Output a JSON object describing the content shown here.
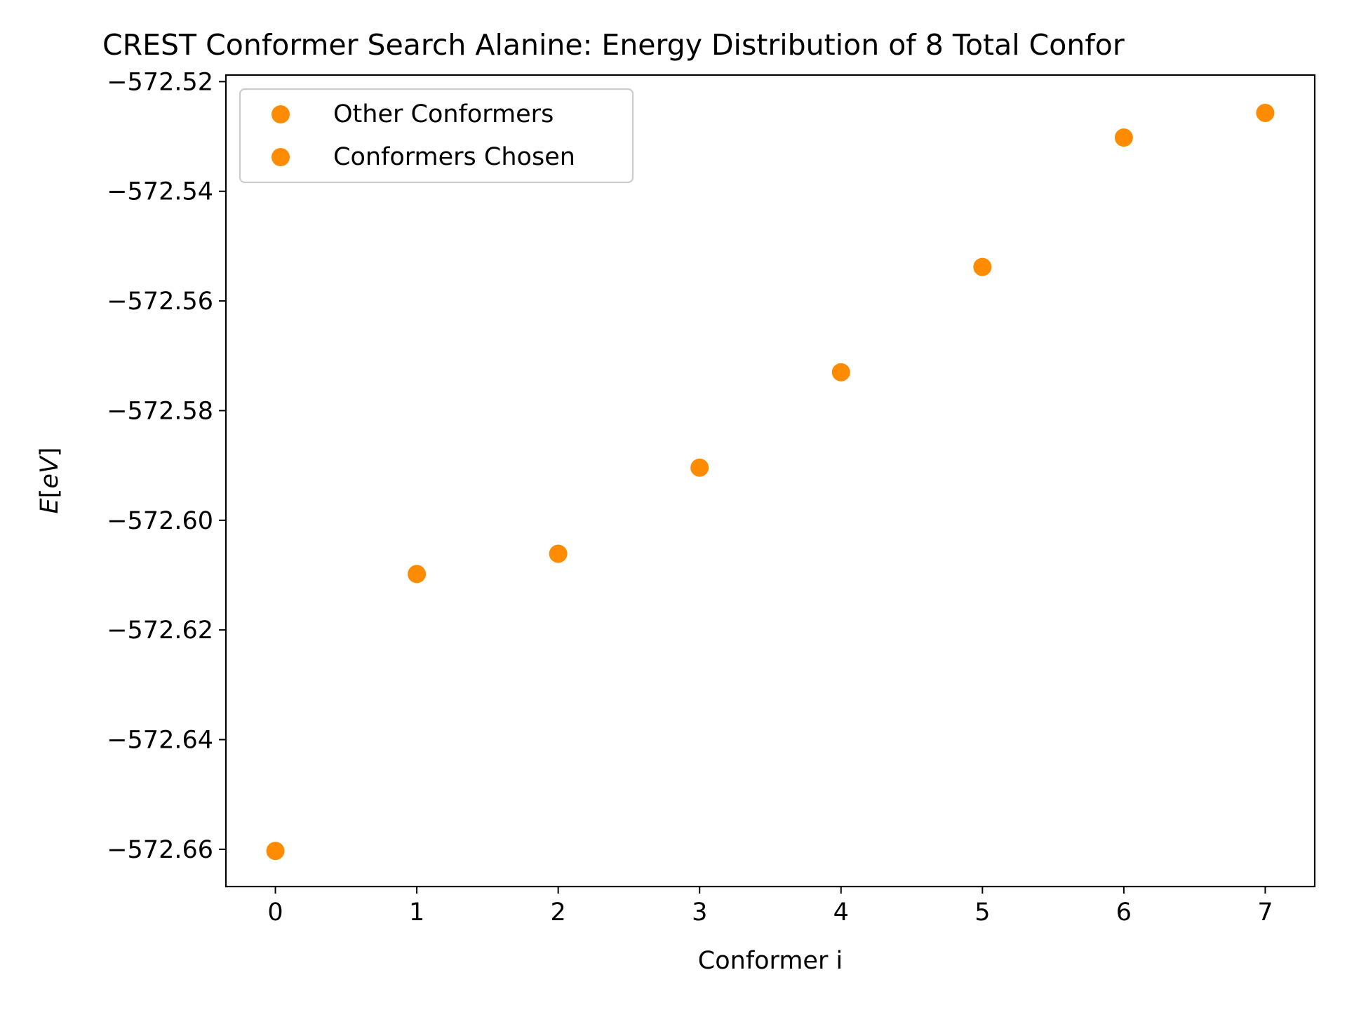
{
  "chart_data": {
    "type": "scatter",
    "title": "CREST Conformer Search Alanine: Energy Distribution of 8 Total Confor",
    "xlabel": "Conformer i",
    "ylabel_main": "E",
    "ylabel_bracket_open": "[",
    "ylabel_italic": "eV",
    "ylabel_bracket_close": "]",
    "xlim": [
      -0.35,
      7.35
    ],
    "ylim": [
      -572.6668,
      -572.5188
    ],
    "xticks": [
      0,
      1,
      2,
      3,
      4,
      5,
      6,
      7
    ],
    "x_tick_labels": [
      "0",
      "1",
      "2",
      "3",
      "4",
      "5",
      "6",
      "7"
    ],
    "yticks": [
      -572.66,
      -572.64,
      -572.62,
      -572.6,
      -572.58,
      -572.56,
      -572.54,
      -572.52
    ],
    "y_tick_labels": [
      "−572.66",
      "−572.64",
      "−572.62",
      "−572.60",
      "−572.58",
      "−572.56",
      "−572.54",
      "−572.52"
    ],
    "grid": false,
    "legend_position": "top-left",
    "series": [
      {
        "name": "Other Conformers",
        "color": "#ff8c00",
        "x": [
          0,
          1,
          2,
          3,
          4,
          5,
          6,
          7
        ],
        "y": [
          -572.6603,
          -572.6098,
          -572.6061,
          -572.5904,
          -572.573,
          -572.5538,
          -572.5302,
          -572.5257
        ]
      },
      {
        "name": "Conformers Chosen",
        "color": "#ff8c00",
        "x": [],
        "y": []
      }
    ]
  }
}
